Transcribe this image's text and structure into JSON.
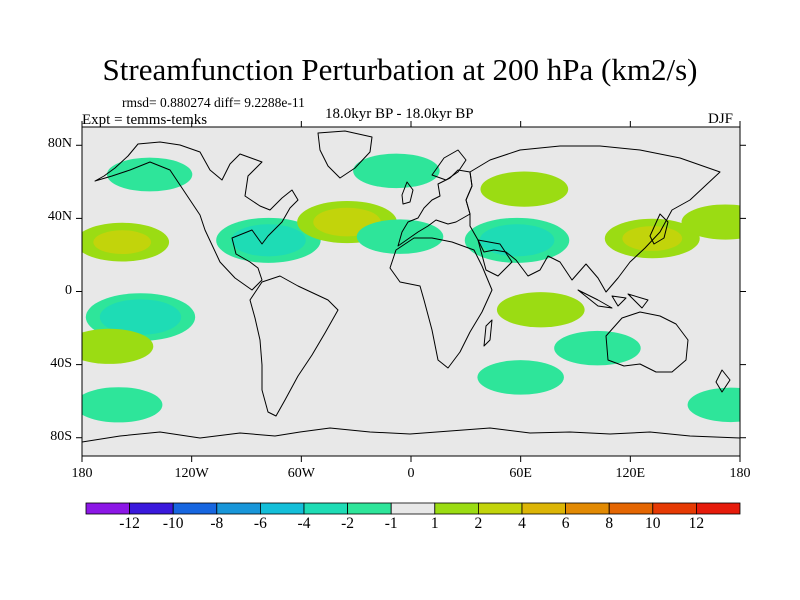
{
  "title": "Streamfunction Perturbation at 200 hPa (km2/s)",
  "stats_text": "rmsd= 0.880274 diff= 9.2288e-11",
  "experiment_text": "Expt = temms-temks",
  "period_text": "18.0kyr BP - 18.0kyr BP",
  "season": "DJF",
  "map": {
    "projection": "cylindrical equidistant",
    "lon_range": [
      -180,
      180
    ],
    "lat_range": [
      -90,
      90
    ],
    "x_ticks": [
      {
        "lon": -180,
        "label": "180"
      },
      {
        "lon": -120,
        "label": "120W"
      },
      {
        "lon": -60,
        "label": "60W"
      },
      {
        "lon": 0,
        "label": "0"
      },
      {
        "lon": 60,
        "label": "60E"
      },
      {
        "lon": 120,
        "label": "120E"
      },
      {
        "lon": 180,
        "label": "180"
      }
    ],
    "y_ticks": [
      {
        "lat": 80,
        "label": "80N"
      },
      {
        "lat": 40,
        "label": "40N"
      },
      {
        "lat": 0,
        "label": "0"
      },
      {
        "lat": -40,
        "label": "40S"
      },
      {
        "lat": -80,
        "label": "80S"
      }
    ],
    "background_color": "#e8e8e8"
  },
  "colorbar": {
    "boundaries": [
      "-12",
      "-10",
      "-8",
      "-6",
      "-4",
      "-2",
      "-1",
      "1",
      "2",
      "4",
      "6",
      "8",
      "10",
      "12"
    ],
    "colors": [
      "#8c17e6",
      "#3a19dc",
      "#1766e0",
      "#1896d9",
      "#14bfd9",
      "#1edcb5",
      "#2ee59a",
      "#e8e8e8",
      "#9bdc13",
      "#c2d40b",
      "#dcb506",
      "#e28a03",
      "#e46602",
      "#e63a04",
      "#e61b0b"
    ]
  },
  "anomalies": [
    {
      "name": "north-pacific-west",
      "lon": -143,
      "lat": 64,
      "value": -1.4
    },
    {
      "name": "central-pacific-north",
      "lon": -158,
      "lat": 27,
      "value": 2.1
    },
    {
      "name": "east-pacific-south",
      "lon": -148,
      "lat": -14,
      "value": -3.4
    },
    {
      "name": "north-america-east",
      "lon": -78,
      "lat": 28,
      "value": -3.0
    },
    {
      "name": "north-atlantic-mid",
      "lon": -35,
      "lat": 38,
      "value": 2.6
    },
    {
      "name": "north-atlantic-east",
      "lon": -6,
      "lat": 30,
      "value": -1.5
    },
    {
      "name": "north-atlantic-high",
      "lon": -8,
      "lat": 66,
      "value": -1.5
    },
    {
      "name": "eurasia-north",
      "lon": 62,
      "lat": 56,
      "value": 1.6
    },
    {
      "name": "middle-east",
      "lon": 58,
      "lat": 28,
      "value": -3.0
    },
    {
      "name": "east-asia-jet",
      "lon": 132,
      "lat": 29,
      "value": 2.2
    },
    {
      "name": "indian-ocean",
      "lon": 71,
      "lat": -10,
      "value": 1.6
    },
    {
      "name": "australia-west",
      "lon": 102,
      "lat": -31,
      "value": -1.5
    },
    {
      "name": "southern-indian",
      "lon": 60,
      "lat": -47,
      "value": -1.5
    },
    {
      "name": "southern-pacific",
      "lon": -160,
      "lat": -62,
      "value": -1.6
    },
    {
      "name": "south-pacific-west",
      "lon": -165,
      "lat": -30,
      "value": 1.6
    },
    {
      "name": "far-east-pacific",
      "lon": 172,
      "lat": 38,
      "value": 1.6
    },
    {
      "name": "southern-ocean-east",
      "lon": 175,
      "lat": -62,
      "value": -1.5
    }
  ]
}
